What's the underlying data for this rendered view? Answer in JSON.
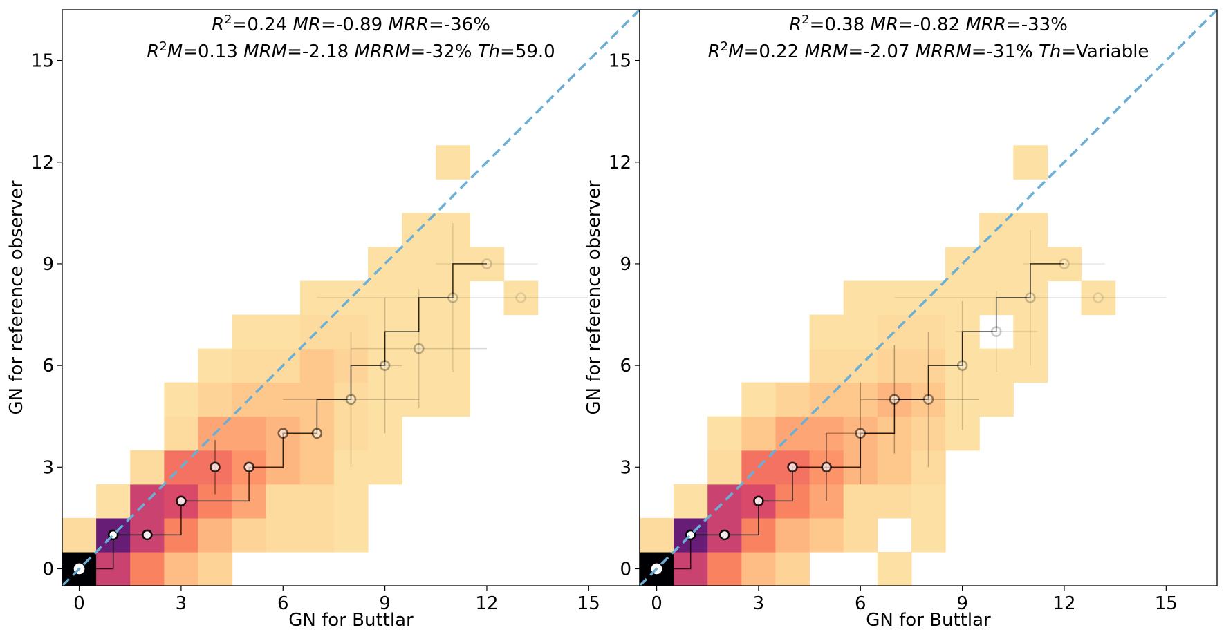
{
  "chart_data": [
    {
      "type": "heatmap",
      "xlabel": "GN for Buttlar",
      "ylabel": "GN for reference observer",
      "stats": {
        "line1": [
          {
            "sym": "R",
            "sup": "2",
            "text": "=0.24 "
          },
          {
            "sym": "MR",
            "text": "=-0.89 "
          },
          {
            "sym": "MRR",
            "text": "=-36%"
          }
        ],
        "line2": [
          {
            "sym": "R",
            "sup": "2",
            "sym2": "M",
            "text": "=0.13 "
          },
          {
            "sym": "MRM",
            "text": "=-2.18 "
          },
          {
            "sym": "MRRM",
            "text": "=-32% "
          },
          {
            "sym": "Th",
            "text": "=59.0"
          }
        ]
      },
      "xlim": [
        -0.5,
        16.5
      ],
      "ylim": [
        -0.5,
        16.5
      ],
      "ticks": [
        0,
        3,
        6,
        9,
        12,
        15
      ],
      "identity_line": true,
      "cells": [
        [
          0,
          0,
          1.0
        ],
        [
          1,
          0,
          0.6
        ],
        [
          2,
          0,
          0.35
        ],
        [
          3,
          0,
          0.18
        ],
        [
          4,
          0,
          0.12
        ],
        [
          0,
          1,
          0.1
        ],
        [
          1,
          1,
          0.85
        ],
        [
          2,
          1,
          0.6
        ],
        [
          3,
          1,
          0.35
        ],
        [
          4,
          1,
          0.2
        ],
        [
          5,
          1,
          0.12
        ],
        [
          6,
          1,
          0.1
        ],
        [
          7,
          1,
          0.1
        ],
        [
          8,
          1,
          0.08
        ],
        [
          1,
          2,
          0.08
        ],
        [
          2,
          2,
          0.6
        ],
        [
          3,
          2,
          0.55
        ],
        [
          4,
          2,
          0.35
        ],
        [
          5,
          2,
          0.25
        ],
        [
          6,
          2,
          0.1
        ],
        [
          7,
          2,
          0.1
        ],
        [
          8,
          2,
          0.08
        ],
        [
          2,
          3,
          0.1
        ],
        [
          3,
          3,
          0.4
        ],
        [
          4,
          3,
          0.4
        ],
        [
          5,
          3,
          0.3
        ],
        [
          6,
          3,
          0.2
        ],
        [
          7,
          3,
          0.15
        ],
        [
          8,
          3,
          0.08
        ],
        [
          9,
          3,
          0.08
        ],
        [
          3,
          4,
          0.1
        ],
        [
          4,
          4,
          0.25
        ],
        [
          5,
          4,
          0.25
        ],
        [
          6,
          4,
          0.2
        ],
        [
          7,
          4,
          0.15
        ],
        [
          8,
          4,
          0.1
        ],
        [
          9,
          4,
          0.08
        ],
        [
          3,
          5,
          0.08
        ],
        [
          4,
          5,
          0.12
        ],
        [
          5,
          5,
          0.15
        ],
        [
          6,
          5,
          0.15
        ],
        [
          7,
          5,
          0.15
        ],
        [
          8,
          5,
          0.1
        ],
        [
          9,
          5,
          0.08
        ],
        [
          10,
          5,
          0.08
        ],
        [
          11,
          5,
          0.08
        ],
        [
          4,
          6,
          0.08
        ],
        [
          5,
          6,
          0.1
        ],
        [
          6,
          6,
          0.1
        ],
        [
          7,
          6,
          0.15
        ],
        [
          8,
          6,
          0.12
        ],
        [
          9,
          6,
          0.08
        ],
        [
          10,
          6,
          0.08
        ],
        [
          11,
          6,
          0.08
        ],
        [
          5,
          7,
          0.08
        ],
        [
          6,
          7,
          0.08
        ],
        [
          7,
          7,
          0.1
        ],
        [
          8,
          7,
          0.1
        ],
        [
          9,
          7,
          0.08
        ],
        [
          10,
          7,
          0.08
        ],
        [
          11,
          7,
          0.08
        ],
        [
          7,
          8,
          0.08
        ],
        [
          8,
          8,
          0.08
        ],
        [
          9,
          8,
          0.08
        ],
        [
          10,
          8,
          0.08
        ],
        [
          11,
          8,
          0.08
        ],
        [
          13,
          8,
          0.08
        ],
        [
          9,
          9,
          0.08
        ],
        [
          10,
          9,
          0.08
        ],
        [
          11,
          9,
          0.08
        ],
        [
          12,
          9,
          0.08
        ],
        [
          10,
          10,
          0.08
        ],
        [
          11,
          10,
          0.08
        ],
        [
          11,
          12,
          0.08
        ]
      ],
      "steps": [
        [
          0,
          0
        ],
        [
          1,
          0
        ],
        [
          1,
          1
        ],
        [
          2,
          1
        ],
        [
          3,
          1
        ],
        [
          3,
          2
        ],
        [
          4,
          2
        ],
        [
          5,
          2
        ],
        [
          5,
          3
        ],
        [
          6,
          3
        ],
        [
          6,
          4
        ],
        [
          7,
          4
        ],
        [
          7,
          5
        ],
        [
          8,
          5
        ],
        [
          8,
          6
        ],
        [
          9,
          6
        ],
        [
          9,
          7
        ],
        [
          10,
          7
        ],
        [
          10,
          8
        ],
        [
          11,
          8
        ],
        [
          11,
          9
        ],
        [
          12,
          9
        ]
      ],
      "points": [
        {
          "x": 0,
          "y": 0,
          "alpha": 1.0,
          "xerr": 0,
          "yerr": 0
        },
        {
          "x": 1,
          "y": 1,
          "alpha": 1.0,
          "xerr": 0,
          "yerr": 0
        },
        {
          "x": 2,
          "y": 1,
          "alpha": 0.9,
          "xerr": 0,
          "yerr": 0
        },
        {
          "x": 3,
          "y": 2,
          "alpha": 0.85,
          "xerr": 0,
          "yerr": 0
        },
        {
          "x": 4,
          "y": 3,
          "alpha": 0.75,
          "xerr": 0,
          "yerr": 0.8
        },
        {
          "x": 5,
          "y": 3,
          "alpha": 0.7,
          "xerr": 0,
          "yerr": 0
        },
        {
          "x": 6,
          "y": 4,
          "alpha": 0.5,
          "xerr": 0,
          "yerr": 0
        },
        {
          "x": 7,
          "y": 4,
          "alpha": 0.5,
          "xerr": 0,
          "yerr": 0
        },
        {
          "x": 8,
          "y": 5,
          "alpha": 0.35,
          "xerr": 2,
          "yerr": 2
        },
        {
          "x": 9,
          "y": 6,
          "alpha": 0.3,
          "xerr": 0.5,
          "yerr": 2
        },
        {
          "x": 10,
          "y": 6.5,
          "alpha": 0.25,
          "xerr": 2,
          "yerr": 1.75
        },
        {
          "x": 11,
          "y": 8,
          "alpha": 0.2,
          "xerr": 4,
          "yerr": 2.2
        },
        {
          "x": 12,
          "y": 9,
          "alpha": 0.15,
          "xerr": 1.5,
          "yerr": 0
        },
        {
          "x": 13,
          "y": 8,
          "alpha": 0.1,
          "xerr": 0,
          "yerr": 0
        }
      ]
    },
    {
      "type": "heatmap",
      "xlabel": "GN for Buttlar",
      "ylabel": "GN for reference observer",
      "stats": {
        "line1": [
          {
            "sym": "R",
            "sup": "2",
            "text": "=0.38 "
          },
          {
            "sym": "MR",
            "text": "=-0.82 "
          },
          {
            "sym": "MRR",
            "text": "=-33%"
          }
        ],
        "line2": [
          {
            "sym": "R",
            "sup": "2",
            "sym2": "M",
            "text": "=0.22 "
          },
          {
            "sym": "MRM",
            "text": "=-2.07 "
          },
          {
            "sym": "MRRM",
            "text": "=-31% "
          },
          {
            "sym": "Th",
            "text": "=Variable"
          }
        ]
      },
      "xlim": [
        -0.5,
        16.5
      ],
      "ylim": [
        -0.5,
        16.5
      ],
      "ticks": [
        0,
        3,
        6,
        9,
        12,
        15
      ],
      "identity_line": true,
      "cells": [
        [
          0,
          0,
          1.0
        ],
        [
          1,
          0,
          0.6
        ],
        [
          2,
          0,
          0.35
        ],
        [
          3,
          0,
          0.18
        ],
        [
          4,
          0,
          0.12
        ],
        [
          7,
          0,
          0.08
        ],
        [
          0,
          1,
          0.1
        ],
        [
          1,
          1,
          0.85
        ],
        [
          2,
          1,
          0.6
        ],
        [
          3,
          1,
          0.35
        ],
        [
          4,
          1,
          0.2
        ],
        [
          5,
          1,
          0.15
        ],
        [
          6,
          1,
          0.1
        ],
        [
          8,
          1,
          0.08
        ],
        [
          1,
          2,
          0.08
        ],
        [
          2,
          2,
          0.6
        ],
        [
          3,
          2,
          0.55
        ],
        [
          4,
          2,
          0.35
        ],
        [
          5,
          2,
          0.25
        ],
        [
          6,
          2,
          0.1
        ],
        [
          7,
          2,
          0.1
        ],
        [
          8,
          2,
          0.08
        ],
        [
          2,
          3,
          0.1
        ],
        [
          3,
          3,
          0.4
        ],
        [
          4,
          3,
          0.4
        ],
        [
          5,
          3,
          0.3
        ],
        [
          6,
          3,
          0.2
        ],
        [
          7,
          3,
          0.15
        ],
        [
          8,
          3,
          0.1
        ],
        [
          2,
          4,
          0.08
        ],
        [
          3,
          4,
          0.15
        ],
        [
          4,
          4,
          0.25
        ],
        [
          5,
          4,
          0.25
        ],
        [
          6,
          4,
          0.2
        ],
        [
          7,
          4,
          0.15
        ],
        [
          8,
          4,
          0.12
        ],
        [
          9,
          4,
          0.08
        ],
        [
          3,
          5,
          0.08
        ],
        [
          4,
          5,
          0.12
        ],
        [
          5,
          5,
          0.15
        ],
        [
          6,
          5,
          0.15
        ],
        [
          7,
          5,
          0.2
        ],
        [
          8,
          5,
          0.15
        ],
        [
          9,
          5,
          0.08
        ],
        [
          10,
          5,
          0.08
        ],
        [
          5,
          6,
          0.1
        ],
        [
          6,
          6,
          0.1
        ],
        [
          7,
          6,
          0.12
        ],
        [
          8,
          6,
          0.12
        ],
        [
          9,
          6,
          0.08
        ],
        [
          10,
          6,
          0.08
        ],
        [
          11,
          6,
          0.08
        ],
        [
          5,
          7,
          0.08
        ],
        [
          6,
          7,
          0.08
        ],
        [
          7,
          7,
          0.1
        ],
        [
          8,
          7,
          0.1
        ],
        [
          9,
          7,
          0.08
        ],
        [
          11,
          7,
          0.08
        ],
        [
          6,
          8,
          0.08
        ],
        [
          7,
          8,
          0.08
        ],
        [
          8,
          8,
          0.08
        ],
        [
          9,
          8,
          0.08
        ],
        [
          10,
          8,
          0.08
        ],
        [
          11,
          8,
          0.08
        ],
        [
          13,
          8,
          0.08
        ],
        [
          9,
          9,
          0.08
        ],
        [
          10,
          9,
          0.08
        ],
        [
          11,
          9,
          0.08
        ],
        [
          12,
          9,
          0.08
        ],
        [
          10,
          10,
          0.08
        ],
        [
          11,
          10,
          0.08
        ],
        [
          11,
          12,
          0.08
        ]
      ],
      "steps": [
        [
          0,
          0
        ],
        [
          1,
          0
        ],
        [
          1,
          1
        ],
        [
          2,
          1
        ],
        [
          3,
          1
        ],
        [
          3,
          2
        ],
        [
          4,
          2
        ],
        [
          4,
          3
        ],
        [
          5,
          3
        ],
        [
          6,
          3
        ],
        [
          6,
          4
        ],
        [
          7,
          4
        ],
        [
          7,
          5
        ],
        [
          8,
          5
        ],
        [
          8,
          6
        ],
        [
          9,
          6
        ],
        [
          9,
          7
        ],
        [
          10,
          7
        ],
        [
          10,
          8
        ],
        [
          11,
          8
        ],
        [
          11,
          9
        ],
        [
          12,
          9
        ]
      ],
      "points": [
        {
          "x": 0,
          "y": 0,
          "alpha": 1.0,
          "xerr": 0,
          "yerr": 0
        },
        {
          "x": 1,
          "y": 1,
          "alpha": 1.0,
          "xerr": 0,
          "yerr": 0
        },
        {
          "x": 2,
          "y": 1,
          "alpha": 0.9,
          "xerr": 0,
          "yerr": 0
        },
        {
          "x": 3,
          "y": 2,
          "alpha": 0.85,
          "xerr": 0,
          "yerr": 0
        },
        {
          "x": 4,
          "y": 3,
          "alpha": 0.75,
          "xerr": 0,
          "yerr": 0
        },
        {
          "x": 5,
          "y": 3,
          "alpha": 0.7,
          "xerr": 0,
          "yerr": 1
        },
        {
          "x": 6,
          "y": 4,
          "alpha": 0.5,
          "xerr": 1,
          "yerr": 1.5
        },
        {
          "x": 7,
          "y": 5,
          "alpha": 0.5,
          "xerr": 1,
          "yerr": 1.6
        },
        {
          "x": 8,
          "y": 5,
          "alpha": 0.4,
          "xerr": 1.5,
          "yerr": 2
        },
        {
          "x": 9,
          "y": 6,
          "alpha": 0.3,
          "xerr": 0,
          "yerr": 1.9
        },
        {
          "x": 10,
          "y": 7,
          "alpha": 0.2,
          "xerr": 1.2,
          "yerr": 1.2
        },
        {
          "x": 11,
          "y": 8,
          "alpha": 0.2,
          "xerr": 4,
          "yerr": 2
        },
        {
          "x": 12,
          "y": 9,
          "alpha": 0.15,
          "xerr": 1.2,
          "yerr": 0
        },
        {
          "x": 13,
          "y": 8,
          "alpha": 0.1,
          "xerr": 0,
          "yerr": 0
        }
      ]
    }
  ],
  "colors": {
    "identity_line": "#6baed6",
    "frame": "#000000",
    "colormap": [
      "#fcfdbf",
      "#fec287",
      "#fb8761",
      "#e75263",
      "#b73779",
      "#721f81",
      "#000004"
    ]
  }
}
